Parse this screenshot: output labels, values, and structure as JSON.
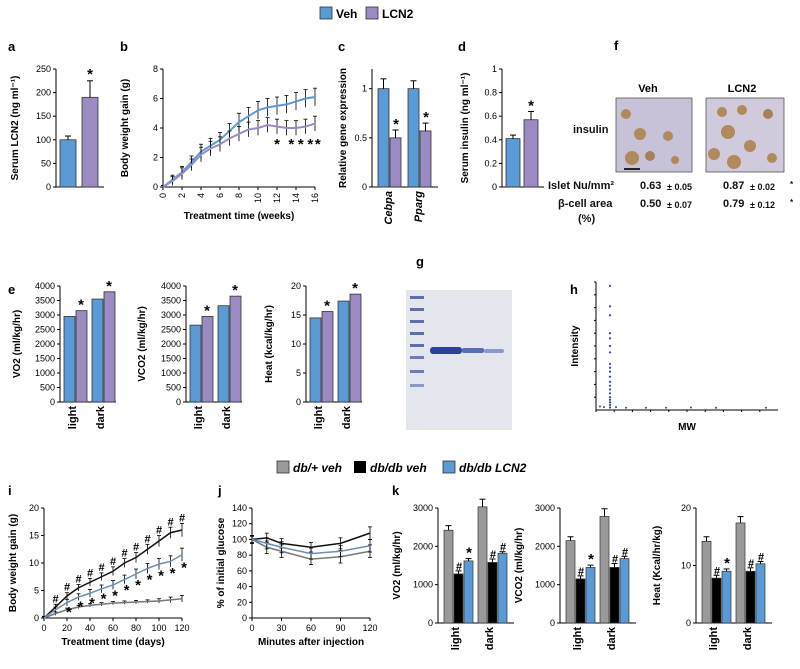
{
  "panel_labels": [
    "a",
    "b",
    "c",
    "d",
    "e",
    "f",
    "g",
    "h",
    "i",
    "j",
    "k"
  ],
  "colors": {
    "veh": "#5b9bd5",
    "lcn2": "#9b8bc2",
    "grey": "#9a9a9a",
    "black": "#000000",
    "blue": "#5b9bd5",
    "dbplus_line": "#777777",
    "dbdb_line": "#111111",
    "lcn2_line": "#6a8fb3",
    "mass_spec": "#3344bb"
  },
  "legend_top": {
    "items": [
      {
        "label": "Veh",
        "color": "#5b9bd5"
      },
      {
        "label": "LCN2",
        "color": "#9b8bc2"
      }
    ]
  },
  "legend_bottom": {
    "items": [
      {
        "label": "db/+ veh",
        "color": "#9a9a9a"
      },
      {
        "label": "db/db veh",
        "color": "#000000"
      },
      {
        "label": "db/db LCN2",
        "color": "#5b9bd5"
      }
    ]
  },
  "star": "*",
  "hash": "#",
  "chart_data": [
    {
      "id": "a",
      "type": "bar",
      "ylabel": "Serum LCN2 (ng ml⁻¹)",
      "ylim": [
        0,
        250
      ],
      "yticks": [
        0,
        50,
        100,
        150,
        200,
        250
      ],
      "categories": [
        "Veh",
        "LCN2"
      ],
      "values": [
        100,
        190
      ],
      "errors": [
        8,
        35
      ],
      "annotations": [
        "",
        "*"
      ]
    },
    {
      "id": "b",
      "type": "line",
      "ylabel": "Body weight gain (g)",
      "xlabel": "Treatment time (weeks)",
      "xlim": [
        0,
        16
      ],
      "ylim": [
        0,
        8
      ],
      "xticks": [
        0,
        2,
        4,
        6,
        8,
        10,
        12,
        14,
        16
      ],
      "yticks": [
        0,
        2,
        4,
        6,
        8
      ],
      "series": [
        {
          "name": "Veh",
          "x": [
            0,
            1,
            2,
            3,
            4,
            5,
            6,
            7,
            8,
            9,
            10,
            11,
            12,
            13,
            14,
            15,
            16
          ],
          "values": [
            0,
            0.5,
            1,
            1.7,
            2.4,
            2.8,
            3.2,
            3.8,
            4.4,
            4.8,
            5.2,
            5.4,
            5.5,
            5.6,
            5.8,
            6.0,
            6.1
          ],
          "errors": [
            0.1,
            0.3,
            0.4,
            0.4,
            0.5,
            0.5,
            0.5,
            0.5,
            0.6,
            0.6,
            0.6,
            0.6,
            0.6,
            0.6,
            0.6,
            0.6,
            0.6
          ]
        },
        {
          "name": "LCN2",
          "x": [
            0,
            1,
            2,
            3,
            4,
            5,
            6,
            7,
            8,
            9,
            10,
            11,
            12,
            13,
            14,
            15,
            16
          ],
          "values": [
            0,
            0.4,
            0.9,
            1.5,
            2.2,
            2.6,
            2.9,
            3.3,
            3.6,
            3.9,
            4.0,
            4.2,
            4.1,
            4.0,
            4.0,
            4.1,
            4.3
          ],
          "errors": [
            0.1,
            0.3,
            0.4,
            0.4,
            0.5,
            0.5,
            0.5,
            0.5,
            0.5,
            0.5,
            0.5,
            0.5,
            0.5,
            0.5,
            0.5,
            0.5,
            0.5
          ]
        }
      ],
      "star_x": [
        12,
        13.5,
        14.5,
        15.5,
        16.3
      ]
    },
    {
      "id": "c",
      "type": "bar",
      "ylabel": "Relative gene expression",
      "ylim": [
        0,
        1
      ],
      "yticks": [
        0,
        0.5,
        1
      ],
      "ytick_labels": [
        "0",
        "0.5",
        "1"
      ],
      "categories": [
        "Cebpa",
        "Pparg"
      ],
      "series": [
        {
          "name": "Veh",
          "values": [
            1.0,
            1.0
          ],
          "errors": [
            0.1,
            0.08
          ]
        },
        {
          "name": "LCN2",
          "values": [
            0.5,
            0.57
          ],
          "errors": [
            0.08,
            0.08
          ]
        }
      ],
      "annotations": [
        "*",
        "*"
      ]
    },
    {
      "id": "d",
      "type": "bar",
      "ylabel": "Serum insulin (ng ml⁻¹)",
      "ylim": [
        0,
        1
      ],
      "yticks": [
        0,
        0.2,
        0.4,
        0.6,
        0.8,
        1
      ],
      "ytick_labels": [
        "0",
        "0.2",
        "0.4",
        "0.6",
        "0.8",
        "1"
      ],
      "categories": [
        "Veh",
        "LCN2"
      ],
      "values": [
        0.41,
        0.57
      ],
      "errors": [
        0.03,
        0.07
      ],
      "annotations": [
        "",
        "*"
      ]
    },
    {
      "id": "e",
      "type": "table",
      "title_left": "Veh",
      "title_right": "LCN2",
      "row_label_stain": "insulin",
      "rows": [
        {
          "label": "Islet Nu/mm²",
          "veh": "0.63",
          "veh_err": "± 0.05",
          "lcn2": "0.87",
          "lcn2_err": "± 0.02",
          "mark": "*"
        },
        {
          "label": "β-cell area",
          "label2": "(%)",
          "veh": "0.50",
          "veh_err": "± 0.07",
          "lcn2": "0.79",
          "lcn2_err": "± 0.12",
          "mark": "*"
        }
      ]
    },
    {
      "id": "f1",
      "type": "bar",
      "ylabel": "VO2 (ml/kg/hr)",
      "ylim": [
        0,
        4000
      ],
      "yticks": [
        0,
        500,
        1000,
        1500,
        2000,
        2500,
        3000,
        3500,
        4000
      ],
      "categories": [
        "light",
        "dark"
      ],
      "series": [
        {
          "name": "Veh",
          "values": [
            2950,
            3550
          ]
        },
        {
          "name": "LCN2",
          "values": [
            3150,
            3800
          ]
        }
      ],
      "annotations": [
        "*",
        "*"
      ]
    },
    {
      "id": "f2",
      "type": "bar",
      "ylabel": "VCO2 (ml/kg/hr)",
      "ylim": [
        0,
        4000
      ],
      "yticks": [
        0,
        500,
        1000,
        1500,
        2000,
        2500,
        3000,
        3500,
        4000
      ],
      "categories": [
        "light",
        "dark"
      ],
      "series": [
        {
          "name": "Veh",
          "values": [
            2650,
            3320
          ]
        },
        {
          "name": "LCN2",
          "values": [
            2950,
            3650
          ]
        }
      ],
      "annotations": [
        "*",
        "*"
      ]
    },
    {
      "id": "f3",
      "type": "bar",
      "ylabel": "Heat (kcal/kg/hr)",
      "ylim": [
        0,
        20
      ],
      "yticks": [
        0,
        5,
        10,
        15,
        20
      ],
      "categories": [
        "light",
        "dark"
      ],
      "series": [
        {
          "name": "Veh",
          "values": [
            14.5,
            17.4
          ]
        },
        {
          "name": "LCN2",
          "values": [
            15.6,
            18.6
          ]
        }
      ],
      "annotations": [
        "*",
        "*"
      ]
    },
    {
      "id": "h",
      "type": "scatter",
      "ylabel": "Intensity",
      "xlabel": "MW"
    },
    {
      "id": "i",
      "type": "line",
      "ylabel": "Body weight gain (g)",
      "xlabel": "Treatment time (days)",
      "xlim": [
        0,
        120
      ],
      "ylim": [
        0,
        20
      ],
      "xticks": [
        0,
        20,
        40,
        60,
        80,
        100,
        120
      ],
      "yticks": [
        0,
        5,
        10,
        15,
        20
      ],
      "series": [
        {
          "name": "db/+ veh",
          "x": [
            0,
            10,
            20,
            30,
            40,
            50,
            60,
            70,
            80,
            90,
            100,
            110,
            120
          ],
          "values": [
            0,
            0.8,
            1.5,
            2.0,
            2.3,
            2.5,
            2.7,
            2.8,
            2.9,
            3.0,
            3.1,
            3.3,
            3.5
          ],
          "errors": [
            0.2,
            0.3,
            0.3,
            0.3,
            0.3,
            0.3,
            0.3,
            0.3,
            0.3,
            0.3,
            0.4,
            0.5,
            0.6
          ]
        },
        {
          "name": "db/db veh",
          "x": [
            0,
            10,
            20,
            30,
            40,
            50,
            60,
            70,
            80,
            90,
            100,
            110,
            120
          ],
          "values": [
            0,
            2,
            4,
            5.5,
            6.5,
            7.5,
            8.5,
            10,
            11,
            12.5,
            14,
            15.5,
            16
          ],
          "errors": [
            0.3,
            0.5,
            0.6,
            0.6,
            0.7,
            0.7,
            0.8,
            0.8,
            0.9,
            0.9,
            1.0,
            1.0,
            1.2
          ]
        },
        {
          "name": "db/db LCN2",
          "x": [
            0,
            10,
            20,
            30,
            40,
            50,
            60,
            70,
            80,
            90,
            100,
            110,
            120
          ],
          "values": [
            0,
            1.5,
            2.8,
            3.8,
            4.5,
            5.3,
            6,
            7,
            8,
            9,
            9.8,
            10.3,
            11.5
          ],
          "errors": [
            0.3,
            0.5,
            0.6,
            0.6,
            0.7,
            0.7,
            0.8,
            0.8,
            0.9,
            0.9,
            1.0,
            1.0,
            1.2
          ]
        }
      ],
      "hash_x": [
        10,
        20,
        30,
        40,
        50,
        60,
        70,
        80,
        90,
        100,
        110,
        120
      ],
      "star_x": [
        20,
        30,
        40,
        50,
        60,
        70,
        80,
        90,
        100,
        110,
        120
      ]
    },
    {
      "id": "j",
      "type": "line",
      "ylabel": "% of initial glucose",
      "xlabel": "Minutes after injection",
      "xlim": [
        0,
        120
      ],
      "ylim": [
        0,
        140
      ],
      "xticks": [
        0,
        30,
        60,
        90,
        120
      ],
      "yticks": [
        0,
        20,
        40,
        60,
        80,
        100,
        120,
        140
      ],
      "series": [
        {
          "name": "db/+ veh",
          "x": [
            0,
            15,
            30,
            60,
            90,
            120
          ],
          "values": [
            100,
            90,
            85,
            75,
            78,
            85
          ],
          "errors": [
            5,
            8,
            8,
            7,
            8,
            8
          ]
        },
        {
          "name": "db/db veh",
          "x": [
            0,
            15,
            30,
            60,
            90,
            120
          ],
          "values": [
            100,
            102,
            95,
            90,
            95,
            108
          ],
          "errors": [
            4,
            6,
            6,
            6,
            7,
            8
          ]
        },
        {
          "name": "db/db LCN2",
          "x": [
            0,
            15,
            30,
            60,
            90,
            120
          ],
          "values": [
            100,
            95,
            90,
            82,
            85,
            92
          ],
          "errors": [
            5,
            7,
            7,
            7,
            7,
            8
          ]
        }
      ]
    },
    {
      "id": "k1",
      "type": "bar",
      "ylabel": "VO2 (ml/kg/hr)",
      "ylim": [
        0,
        3000
      ],
      "yticks": [
        0,
        1000,
        2000,
        3000
      ],
      "categories": [
        "light",
        "dark"
      ],
      "series": [
        {
          "name": "db/+ veh",
          "values": [
            2420,
            3030
          ],
          "errors": [
            120,
            200
          ]
        },
        {
          "name": "db/db veh",
          "values": [
            1280,
            1580
          ],
          "errors": [
            80,
            90
          ]
        },
        {
          "name": "db/db LCN2",
          "values": [
            1620,
            1820
          ],
          "errors": [
            60,
            40
          ]
        }
      ],
      "marks": [
        [
          "#",
          "*"
        ],
        [
          "#",
          "#"
        ]
      ]
    },
    {
      "id": "k2",
      "type": "bar",
      "ylabel": "VCO2 (ml/kg/hr)",
      "ylim": [
        0,
        3000
      ],
      "yticks": [
        0,
        1000,
        2000,
        3000
      ],
      "categories": [
        "light",
        "dark"
      ],
      "series": [
        {
          "name": "db/+ veh",
          "values": [
            2150,
            2780
          ],
          "errors": [
            100,
            200
          ]
        },
        {
          "name": "db/db veh",
          "values": [
            1150,
            1450
          ],
          "errors": [
            80,
            100
          ]
        },
        {
          "name": "db/db LCN2",
          "values": [
            1450,
            1680
          ],
          "errors": [
            60,
            60
          ]
        }
      ],
      "marks": [
        [
          "#",
          "*"
        ],
        [
          "#",
          "#"
        ]
      ]
    },
    {
      "id": "k3",
      "type": "bar",
      "ylabel": "Heat (Kcal/hr/kg)",
      "ylim": [
        0,
        20
      ],
      "yticks": [
        0,
        10,
        20
      ],
      "categories": [
        "light",
        "dark"
      ],
      "series": [
        {
          "name": "db/+ veh",
          "values": [
            14.2,
            17.4
          ],
          "errors": [
            0.8,
            1.1
          ]
        },
        {
          "name": "db/db veh",
          "values": [
            7.8,
            9.0
          ],
          "errors": [
            0.5,
            0.6
          ]
        },
        {
          "name": "db/db LCN2",
          "values": [
            9.0,
            10.3
          ],
          "errors": [
            0.4,
            0.4
          ]
        }
      ],
      "marks": [
        [
          "#",
          "*"
        ],
        [
          "#",
          "#"
        ]
      ]
    }
  ]
}
